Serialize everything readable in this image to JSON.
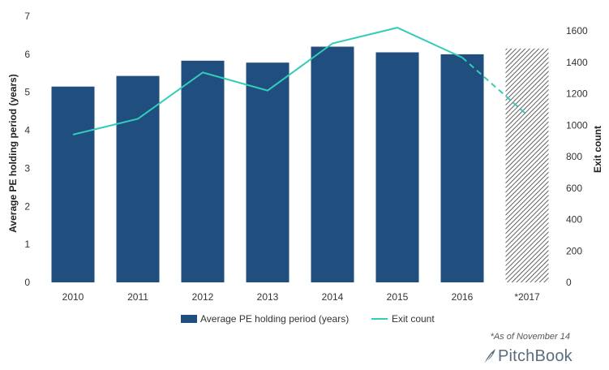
{
  "chart_data": {
    "type": "bar",
    "categories": [
      "2010",
      "2011",
      "2012",
      "2013",
      "2014",
      "2015",
      "2016",
      "*2017"
    ],
    "series": [
      {
        "name": "Average PE holding period (years)",
        "type": "bar",
        "axis": "left",
        "values": [
          5.15,
          5.43,
          5.83,
          5.78,
          6.2,
          6.05,
          6.0,
          6.15
        ],
        "color": "#1f4e7f",
        "hatched_categories": [
          "*2017"
        ]
      },
      {
        "name": "Exit count",
        "type": "line",
        "axis": "right",
        "values": [
          940,
          1040,
          1335,
          1220,
          1520,
          1620,
          1430,
          1065
        ],
        "color": "#33cdb7",
        "dashed_categories": [
          "2016",
          "*2017"
        ]
      }
    ],
    "ylabel": "Average PE holding  period (years)",
    "y2label": "Exit count",
    "ylim": [
      0,
      7
    ],
    "y2lim": [
      0,
      1600
    ],
    "yticks": [
      "0",
      "1",
      "2",
      "3",
      "4",
      "5",
      "6",
      "7"
    ],
    "y2ticks": [
      "0",
      "200",
      "400",
      "600",
      "800",
      "1000",
      "1200",
      "1400",
      "1600"
    ],
    "grid": false,
    "legend_position": "bottom"
  },
  "footnote": "*As of November 14",
  "brand": {
    "name": "PitchBook",
    "icon": "feather-icon"
  }
}
